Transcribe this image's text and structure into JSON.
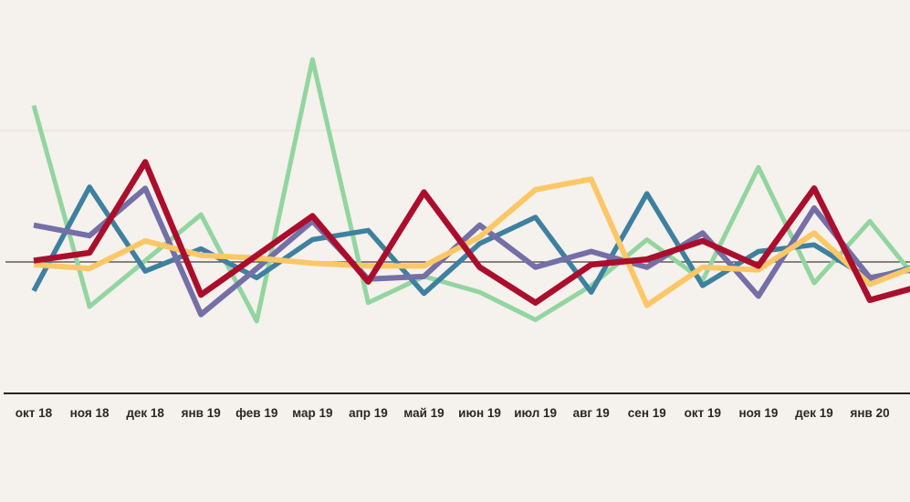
{
  "page": {
    "background_color": "#f5f1ec",
    "title": ""
  },
  "axis": {
    "x_labels": [
      "окт 18",
      "ноя 18",
      "дек 18",
      "янв 19",
      "фев 19",
      "мар 19",
      "апр 19",
      "май 19",
      "июн 19",
      "июл 19",
      "авг 19",
      "сен 19",
      "окт 19",
      "ноя 19",
      "дек 19",
      "янв 20"
    ],
    "y_labels_visible": false,
    "gridline_color": "#e6e0d9",
    "zero_line_color": "#46413c",
    "baseline_color": "#26231f",
    "label_color": "#2b2724"
  },
  "chart_data": {
    "type": "line",
    "title": "",
    "xlabel": "",
    "ylabel": "",
    "legend": "none",
    "grid": {
      "upper_gridline_value": 1,
      "zero_line_value": 0,
      "baseline_value": -1
    },
    "ylim": [
      -1.83,
      2.0
    ],
    "categories": [
      "окт 18",
      "ноя 18",
      "дек 18",
      "янв 19",
      "фев 19",
      "мар 19",
      "апр 19",
      "май 19",
      "июн 19",
      "июл 19",
      "авг 19",
      "сен 19",
      "окт 19",
      "ноя 19",
      "дек 19",
      "янв 20"
    ],
    "series": [
      {
        "name": "green",
        "color": "#92d5a0",
        "width": 5,
        "values": [
          1.19,
          -0.34,
          0.01,
          0.36,
          -0.45,
          1.54,
          -0.31,
          -0.11,
          -0.23,
          -0.44,
          -0.18,
          0.17,
          -0.14,
          0.72,
          -0.16,
          0.31
        ],
        "edge_value": -0.14
      },
      {
        "name": "blue",
        "color": "#3e80a0",
        "width": 5.5,
        "values": [
          -0.22,
          0.57,
          -0.07,
          0.1,
          -0.12,
          0.17,
          0.24,
          -0.24,
          0.14,
          0.34,
          -0.23,
          0.52,
          -0.18,
          0.08,
          0.13,
          -0.13
        ],
        "edge_value": -0.03
      },
      {
        "name": "purple",
        "color": "#746fa6",
        "width": 6,
        "values": [
          0.28,
          0.2,
          0.56,
          -0.4,
          -0.05,
          0.31,
          -0.13,
          -0.11,
          0.28,
          -0.04,
          0.08,
          -0.04,
          0.22,
          -0.26,
          0.41,
          -0.12
        ],
        "edge_value": -0.05
      },
      {
        "name": "yellow",
        "color": "#fcc767",
        "width": 6,
        "values": [
          -0.02,
          -0.05,
          0.16,
          0.05,
          0.03,
          -0.01,
          -0.03,
          -0.03,
          0.19,
          0.55,
          0.63,
          -0.33,
          -0.04,
          -0.06,
          0.22,
          -0.17
        ],
        "edge_value": -0.03
      },
      {
        "name": "red",
        "color": "#aa0e2c",
        "width": 6.5,
        "values": [
          0.01,
          0.07,
          0.76,
          -0.25,
          0.05,
          0.35,
          -0.15,
          0.53,
          -0.04,
          -0.31,
          -0.02,
          0.02,
          0.16,
          -0.03,
          0.56,
          -0.29
        ],
        "edge_value": -0.19
      }
    ]
  }
}
